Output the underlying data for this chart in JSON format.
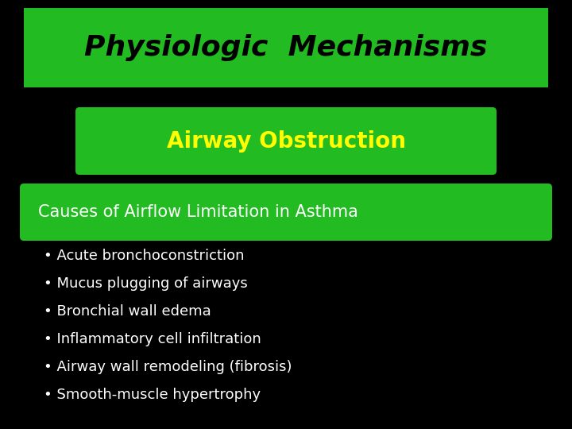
{
  "background_color": "#000000",
  "title": "Physiologic  Mechanisms",
  "title_color": "#000000",
  "title_bg_color": "#22bb22",
  "subtitle": "Airway Obstruction",
  "subtitle_color": "#ffff00",
  "subtitle_bg_color": "#22bb22",
  "section_header": "Causes of Airflow Limitation in Asthma",
  "section_header_color": "#ffffff",
  "section_header_bg_color": "#22bb22",
  "bullet_points": [
    "Acute bronchoconstriction",
    "Mucus plugging of airways",
    "Bronchial wall edema",
    "Inflammatory cell infiltration",
    "Airway wall remodeling (fibrosis)",
    "Smooth-muscle hypertrophy"
  ],
  "bullet_color": "#ffffff",
  "title_fontsize": 26,
  "subtitle_fontsize": 20,
  "section_fontsize": 15,
  "bullet_fontsize": 13
}
